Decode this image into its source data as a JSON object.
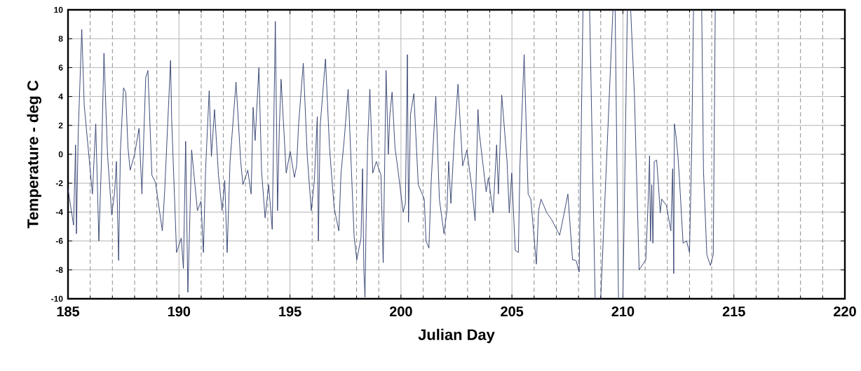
{
  "chart_data": {
    "type": "line",
    "xlabel": "Julian Day",
    "ylabel": "Temperature - deg C",
    "x": [
      185.0,
      185.15,
      185.25,
      185.34,
      185.38,
      185.46,
      185.62,
      185.73,
      186.1,
      186.25,
      186.39,
      186.5,
      186.62,
      186.78,
      186.97,
      187.1,
      187.18,
      187.28,
      187.36,
      187.5,
      187.6,
      187.7,
      187.8,
      188.0,
      188.2,
      188.33,
      188.5,
      188.6,
      188.78,
      188.94,
      189.25,
      189.36,
      189.62,
      189.67,
      189.89,
      190.1,
      190.2,
      190.3,
      190.4,
      190.57,
      190.83,
      190.99,
      191.1,
      191.2,
      191.36,
      191.46,
      191.6,
      191.78,
      191.94,
      192.06,
      192.17,
      192.3,
      192.57,
      192.78,
      192.88,
      193.1,
      193.25,
      193.34,
      193.43,
      193.6,
      193.72,
      193.88,
      194.04,
      194.2,
      194.34,
      194.44,
      194.52,
      194.6,
      194.83,
      195.01,
      195.2,
      195.3,
      195.39,
      195.6,
      195.78,
      195.96,
      196.1,
      196.23,
      196.28,
      196.36,
      196.6,
      196.78,
      196.99,
      197.2,
      197.3,
      197.44,
      197.62,
      197.89,
      198.01,
      198.2,
      198.27,
      198.33,
      198.38,
      198.43,
      198.5,
      198.6,
      198.73,
      198.89,
      199.1,
      199.2,
      199.33,
      199.43,
      199.5,
      199.6,
      199.73,
      199.87,
      200.1,
      200.2,
      200.29,
      200.34,
      200.43,
      200.58,
      200.78,
      201.05,
      201.13,
      201.26,
      201.36,
      201.57,
      201.73,
      201.94,
      202.07,
      202.15,
      202.25,
      202.41,
      202.57,
      202.78,
      202.97,
      203.2,
      203.34,
      203.47,
      203.52,
      203.84,
      203.94,
      204.15,
      204.31,
      204.39,
      204.54,
      204.78,
      204.88,
      204.99,
      205.15,
      205.29,
      205.36,
      205.55,
      205.73,
      205.85,
      206.1,
      206.2,
      206.31,
      206.57,
      206.78,
      207.15,
      207.31,
      207.52,
      207.73,
      207.89,
      208.03,
      208.2,
      208.35,
      208.5,
      208.75,
      208.88,
      209.0,
      209.55,
      209.6,
      209.65,
      209.8,
      209.9,
      210.0,
      210.2,
      210.28,
      210.35,
      210.52,
      210.73,
      211.03,
      211.15,
      211.2,
      211.24,
      211.3,
      211.35,
      211.41,
      211.52,
      211.6,
      211.68,
      211.75,
      211.96,
      212.16,
      212.24,
      212.29,
      212.32,
      212.4,
      212.48,
      212.55,
      212.71,
      212.87,
      213.0,
      213.1,
      213.18,
      213.35,
      213.55,
      213.63,
      213.78,
      213.94,
      214.07,
      214.16
    ],
    "series": [
      {
        "color": "#2b3a6b",
        "values": [
          -2.4,
          -3.9,
          -4.9,
          0.65,
          -5.5,
          1.45,
          8.65,
          3.4,
          -2.75,
          2.1,
          -6.0,
          -0.8,
          7.0,
          0.0,
          -4.2,
          -2.6,
          -0.5,
          -7.35,
          0.2,
          4.6,
          4.3,
          0.5,
          -1.1,
          0.0,
          1.8,
          -2.75,
          5.3,
          5.8,
          -1.45,
          -1.95,
          -5.3,
          -2.4,
          6.5,
          2.4,
          -6.8,
          -5.8,
          -7.9,
          0.9,
          -9.55,
          0.3,
          -3.9,
          -3.25,
          -6.8,
          -1.0,
          4.4,
          -0.15,
          3.1,
          -1.45,
          -3.9,
          -1.8,
          -6.8,
          -0.5,
          5.0,
          -0.5,
          -2.1,
          -1.1,
          -2.75,
          3.25,
          0.95,
          6.0,
          -1.15,
          -4.4,
          -2.1,
          -5.2,
          9.2,
          -3.9,
          1.8,
          5.2,
          -1.3,
          0.2,
          -1.6,
          -0.8,
          2.1,
          6.3,
          -0.15,
          -3.9,
          -1.8,
          2.6,
          -6.0,
          1.95,
          6.6,
          0.5,
          -3.7,
          -5.3,
          -1.3,
          0.95,
          4.5,
          -5.7,
          -7.3,
          -5.8,
          -1.0,
          -8.1,
          -9.9,
          -4.7,
          0.8,
          4.5,
          -1.3,
          -0.5,
          -1.45,
          -7.5,
          5.8,
          0.0,
          2.75,
          4.3,
          0.5,
          -1.15,
          -4.0,
          -3.4,
          6.9,
          -4.7,
          2.75,
          4.2,
          -2.1,
          -3.1,
          -6.0,
          -6.5,
          -1.95,
          4.0,
          -3.1,
          -5.5,
          -3.9,
          -0.5,
          -3.4,
          1.3,
          4.85,
          -0.8,
          0.3,
          -2.4,
          -4.6,
          3.1,
          1.6,
          -2.6,
          -1.6,
          -4.05,
          0.65,
          -2.75,
          4.1,
          -0.5,
          -4.05,
          -1.3,
          -6.65,
          -6.8,
          -0.8,
          6.9,
          -2.75,
          -3.1,
          -7.6,
          -3.9,
          -3.1,
          -4.05,
          -4.5,
          -5.6,
          -4.4,
          -2.75,
          -7.3,
          -7.35,
          -8.15,
          10,
          null,
          10,
          -10,
          null,
          -10,
          10,
          null,
          10,
          -10,
          null,
          -10,
          10,
          null,
          10,
          4.05,
          -8.0,
          -7.3,
          -2.75,
          -0.1,
          -6.0,
          -2.1,
          -6.15,
          -0.5,
          -0.4,
          -2.1,
          -4.05,
          -3.1,
          -3.55,
          -5.3,
          -1.0,
          -8.25,
          2.1,
          1.15,
          -0.15,
          -1.8,
          -6.15,
          -6.0,
          -6.8,
          0.5,
          10,
          null,
          10,
          -1.15,
          -6.95,
          -7.7,
          -6.95,
          10
        ]
      }
    ],
    "xlim": [
      185,
      220
    ],
    "ylim": [
      -10,
      10
    ],
    "xticks": [
      185,
      190,
      195,
      200,
      205,
      210,
      215,
      220
    ],
    "yticks": [
      -10,
      -8,
      -6,
      -4,
      -2,
      0,
      2,
      4,
      6,
      8,
      10
    ],
    "grid": true
  }
}
